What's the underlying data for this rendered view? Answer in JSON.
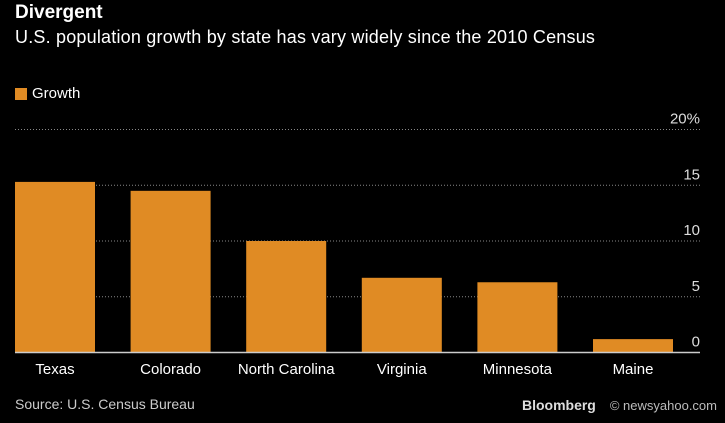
{
  "chart_data": {
    "type": "bar",
    "title": "Divergent",
    "subtitle": "U.S. population growth by state has vary widely since the 2010 Census",
    "categories": [
      "Texas",
      "Colorado",
      "North Carolina",
      "Virginia",
      "Minnesota",
      "Maine"
    ],
    "series": [
      {
        "name": "Growth",
        "values": [
          15.3,
          14.5,
          10.0,
          6.7,
          6.3,
          1.2
        ],
        "color": "#E08B24"
      }
    ],
    "ylim": [
      0,
      20
    ],
    "yticks": [
      0,
      5,
      10,
      15,
      20
    ],
    "ytick_labels": [
      "0",
      "5",
      "10",
      "15",
      "20%"
    ],
    "grid": true,
    "y_axis_side": "right",
    "legend_position": "top-left",
    "source": "Source: U.S. Census Bureau",
    "brand": "Bloomberg",
    "watermark": "© newsyahoo.com"
  }
}
